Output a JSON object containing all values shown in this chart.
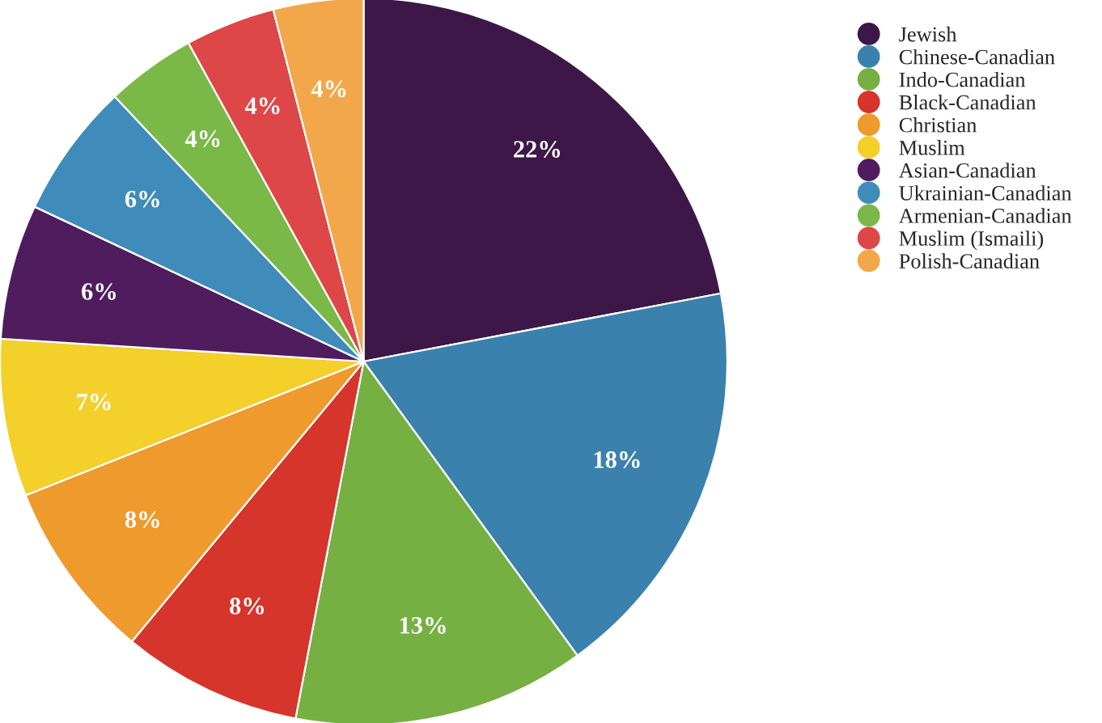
{
  "chart_data": {
    "type": "pie",
    "categories": [
      "Jewish",
      "Chinese-Canadian",
      "Indo-Canadian",
      "Black-Canadian",
      "Christian",
      "Muslim",
      "Asian-Canadian",
      "Ukrainian-Canadian",
      "Armenian-Canadian",
      "Muslim (Ismaili)",
      "Polish-Canadian"
    ],
    "values": [
      22,
      18,
      13,
      8,
      8,
      7,
      6,
      6,
      4,
      4,
      4
    ],
    "colors": [
      "#3d1748",
      "#3a82ad",
      "#76b043",
      "#d5352b",
      "#ee9a2c",
      "#f3d02a",
      "#4f1d5e",
      "#3f8cba",
      "#7ab848",
      "#de4748",
      "#f2a84a"
    ],
    "value_labels": [
      "22%",
      "18%",
      "13%",
      "8%",
      "8%",
      "7%",
      "6%",
      "6%",
      "4%",
      "4%",
      "4%"
    ],
    "legend": "top right"
  }
}
